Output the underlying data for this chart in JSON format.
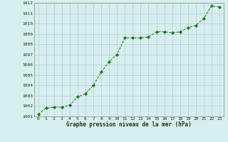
{
  "x": [
    0,
    1,
    2,
    3,
    4,
    5,
    6,
    7,
    8,
    9,
    10,
    11,
    12,
    13,
    14,
    15,
    16,
    17,
    18,
    19,
    20,
    21,
    22,
    23
  ],
  "y": [
    1001.2,
    1001.8,
    1001.9,
    1001.9,
    1002.1,
    1002.9,
    1003.2,
    1004.0,
    1005.3,
    1006.3,
    1007.0,
    1008.6,
    1008.6,
    1008.6,
    1008.7,
    1009.2,
    1009.2,
    1009.1,
    1009.2,
    1009.6,
    1009.8,
    1010.5,
    1011.7,
    1011.6
  ],
  "line_color": "#2a6e28",
  "marker_color": "#2a6e28",
  "bg_color": "#d6eeee",
  "grid_color": "#b0d0d0",
  "xlabel": "Graphe pression niveau de la mer (hPa)",
  "xlabel_color": "#1a3318",
  "ylim_min": 1001,
  "ylim_max": 1012,
  "xlim_min": -0.5,
  "xlim_max": 23.5,
  "xtick_labels": [
    "0",
    "1",
    "2",
    "3",
    "4",
    "5",
    "6",
    "7",
    "8",
    "9",
    "10",
    "11",
    "12",
    "13",
    "14",
    "15",
    "16",
    "17",
    "18",
    "19",
    "20",
    "21",
    "22",
    "23"
  ]
}
